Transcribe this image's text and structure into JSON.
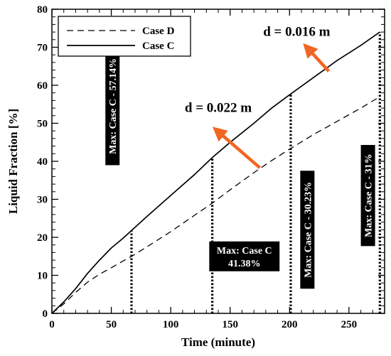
{
  "chart_data": {
    "type": "line",
    "xlabel": "Time (minute)",
    "ylabel": "Liquid Fraction [%]",
    "xlim": [
      0,
      280
    ],
    "ylim": [
      0,
      80
    ],
    "xticks": [
      0,
      50,
      100,
      150,
      200,
      250
    ],
    "yticks": [
      0,
      10,
      20,
      30,
      40,
      50,
      60,
      70,
      80
    ],
    "legend_position": "top-left",
    "series": [
      {
        "name": "Case D",
        "style": "dashed",
        "x": [
          0,
          10,
          20,
          30,
          40,
          50,
          60,
          67,
          80,
          100,
          120,
          135,
          150,
          170,
          185,
          200,
          220,
          240,
          260,
          276
        ],
        "y": [
          0,
          2.5,
          5.5,
          8.2,
          10.3,
          12.0,
          13.8,
          15.0,
          17.5,
          21.5,
          25.8,
          29.0,
          32.5,
          37.0,
          40.2,
          43.2,
          47.0,
          50.5,
          54.0,
          57.0
        ]
      },
      {
        "name": "Case C",
        "style": "solid",
        "x": [
          0,
          10,
          20,
          30,
          40,
          50,
          60,
          67,
          80,
          100,
          120,
          135,
          150,
          170,
          185,
          200,
          220,
          240,
          260,
          276
        ],
        "y": [
          0,
          3.0,
          6.5,
          10.5,
          14.0,
          17.2,
          19.8,
          21.8,
          25.5,
          31.0,
          36.5,
          41.0,
          45.0,
          50.0,
          54.0,
          57.5,
          62.0,
          66.5,
          70.5,
          74.0
        ]
      }
    ],
    "vlines": [
      {
        "x": 67,
        "y_top": 21.8
      },
      {
        "x": 135,
        "y_top": 41.0
      },
      {
        "x": 201,
        "y_top": 57.6
      },
      {
        "x": 276,
        "y_top": 74.0
      }
    ],
    "annotations": [
      {
        "text": "Max: Case C - 57.14%",
        "orientation": "vertical",
        "x": 51,
        "y": 54.5
      },
      {
        "text": "Max: Case C\n41.38%",
        "orientation": "horizontal",
        "x": 162,
        "y": 15
      },
      {
        "text": "Max: Case C - 30.23%",
        "orientation": "vertical",
        "x": 215,
        "y": 22
      },
      {
        "text": "Max: Case C - 31%",
        "orientation": "vertical",
        "x": 266,
        "y": 31
      },
      {
        "text": "d = 0.016 m",
        "orientation": "label",
        "x": 206,
        "y": 73
      },
      {
        "text": "d = 0.022 m",
        "orientation": "label",
        "x": 140,
        "y": 53
      }
    ],
    "arrows": [
      {
        "from": [
          233,
          63.7
        ],
        "to": [
          213,
          70.5
        ],
        "color": "#f26522"
      },
      {
        "from": [
          175,
          38.3
        ],
        "to": [
          137,
          48.6
        ],
        "color": "#f26522"
      }
    ]
  }
}
